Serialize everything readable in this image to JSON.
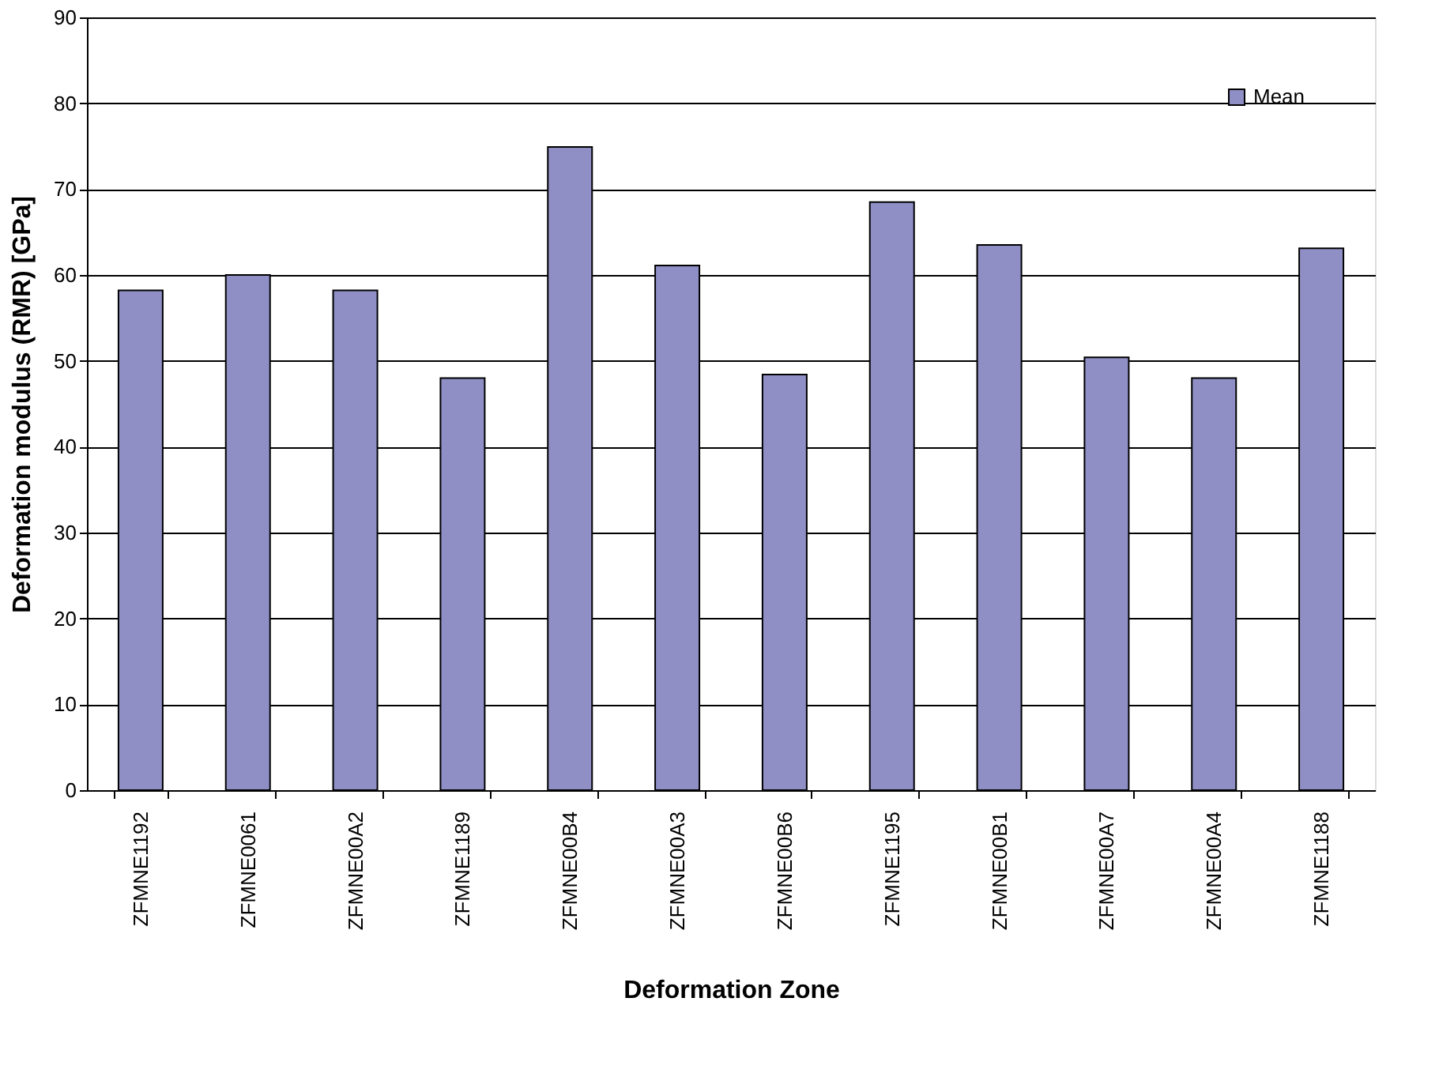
{
  "chart_data": {
    "type": "bar",
    "xlabel": "Deformation Zone",
    "ylabel": "Deformation modulus (RMR) [GPa]",
    "categories": [
      "ZFMNE1192",
      "ZFMNE0061",
      "ZFMNE00A2",
      "ZFMNE1189",
      "ZFMNE00B4",
      "ZFMNE00A3",
      "ZFMNE00B6",
      "ZFMNE1195",
      "ZFMNE00B1",
      "ZFMNE00A7",
      "ZFMNE00A4",
      "ZFMNE1188"
    ],
    "series": [
      {
        "name": "Mean",
        "color": "#8f8fc6",
        "values": [
          58.2,
          60.0,
          58.2,
          48.0,
          74.9,
          61.1,
          48.4,
          68.5,
          63.5,
          50.4,
          48.0,
          63.1
        ]
      }
    ],
    "ylim": [
      0,
      90
    ],
    "yticks": [
      0,
      10,
      20,
      30,
      40,
      50,
      60,
      70,
      80,
      90
    ],
    "grid": "y",
    "legend": "top right"
  }
}
